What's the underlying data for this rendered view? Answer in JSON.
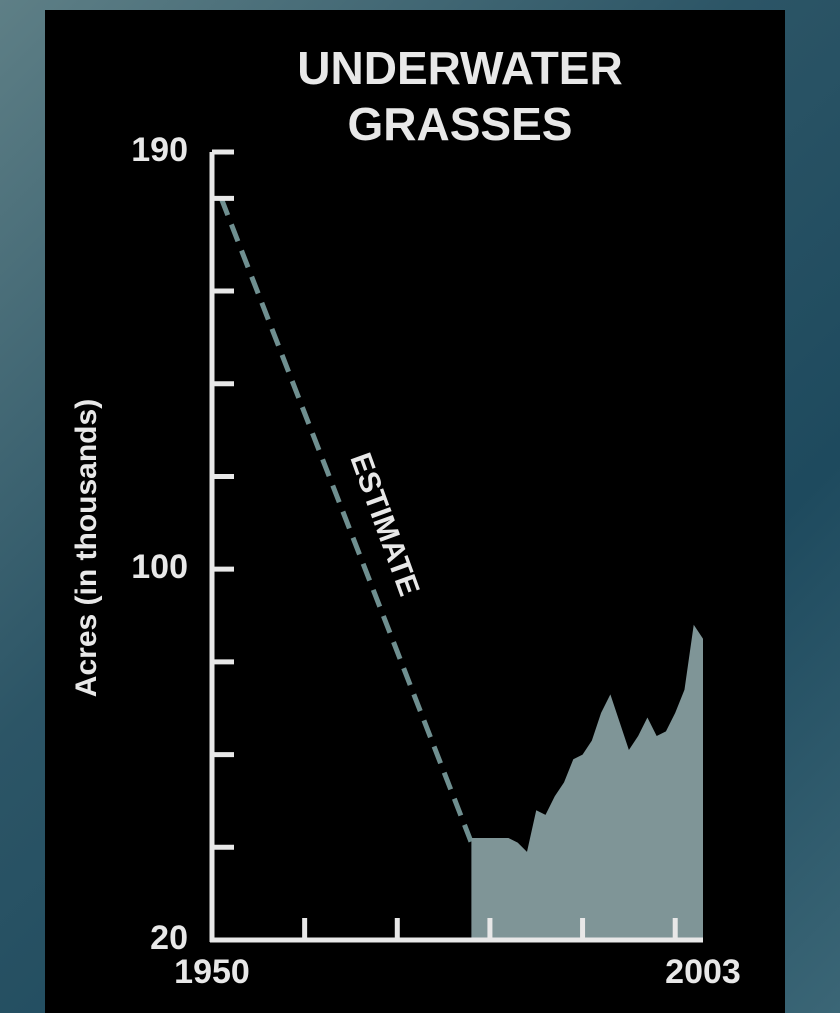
{
  "chart_data": {
    "type": "area",
    "title": "UNDERWATER GRASSES",
    "y_label": "Acres (in thousands)",
    "annotation": "ESTIMATE",
    "xlim": [
      1950,
      2003
    ],
    "xticks": [
      1950,
      2003
    ],
    "xminor_ticks": [
      1960,
      1970,
      1980,
      1990,
      2000
    ],
    "ylim": [
      20,
      190
    ],
    "yticks": [
      20,
      100,
      190
    ],
    "yminor_ticks": [
      40,
      60,
      80,
      120,
      140,
      160,
      180
    ],
    "series": [
      {
        "x": [
          1951,
          1978
        ],
        "values": [
          180,
          41
        ],
        "color": "#6f8f90",
        "dashed": true
      },
      {
        "x": [
          1978,
          1979,
          1980,
          1981,
          1982,
          1983,
          1984,
          1985,
          1986,
          1987,
          1988,
          1989,
          1990,
          1991,
          1992,
          1993,
          1994,
          1995,
          1996,
          1997,
          1998,
          1999,
          2000,
          2001,
          2002,
          2003
        ],
        "values": [
          42,
          42,
          42,
          42,
          42,
          41,
          39,
          48,
          47,
          51,
          54,
          59,
          60,
          63,
          69,
          73,
          67,
          61,
          64,
          68,
          64,
          65,
          69,
          74,
          88,
          85
        ],
        "color": "#7f9597",
        "area": true
      }
    ]
  }
}
